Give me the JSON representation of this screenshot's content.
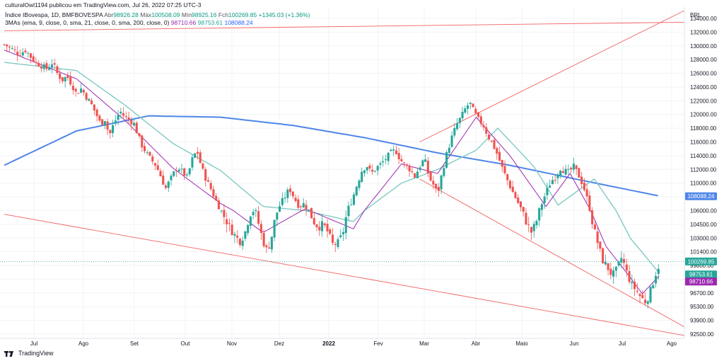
{
  "header": {
    "publisher": "culturalOwl1194 publicou em TradingView.com, Jul 26, 2022 07:25 UTC-3",
    "symbol": "Índice IBovespa, 1D, BMFBOVESPA",
    "open_key": "Abr",
    "open": "98926.28",
    "high_key": "Máx",
    "high": "100508.09",
    "low_key": "Mín",
    "low": "98925.16",
    "close_key": "Fch",
    "close": "100269.85",
    "change": "+1345.03 (+1.36%)",
    "indicator": "3MAs (ema, 9, close, 0, sma, 21, close, 0, sma, 200, close, 0)",
    "ma_values": [
      "98710.66",
      "98753.61",
      "108088.24"
    ]
  },
  "currency": "BRL",
  "footer": {
    "logo_text": "TradingView"
  },
  "colors": {
    "up": "#26a69a",
    "down": "#ef5350",
    "ema9": "#9c27b0",
    "sma21": "#80cbc4",
    "sma200": "#4f86e8",
    "trendline": "#f06262"
  },
  "chart_data": {
    "type": "candlestick",
    "currency": "BRL",
    "y_ticks": [
      "134000.00",
      "132000.00",
      "130000.00",
      "128000.00",
      "126000.00",
      "124000.00",
      "122000.00",
      "120000.00",
      "118000.00",
      "116000.00",
      "114000.00",
      "112000.00",
      "110000.00",
      "108000.00",
      "106000.00",
      "104500.00",
      "103000.00",
      "101400.00",
      "99800.00",
      "98200.00",
      "96700.00",
      "95300.00",
      "93900.00",
      "92500.00"
    ],
    "x_ticks": [
      "Jul",
      "Ago",
      "Set",
      "Out",
      "Nov",
      "Dez",
      "2022",
      "Fev",
      "Mar",
      "Abr",
      "Maio",
      "Jun",
      "Jul",
      "Ago"
    ],
    "price_badges": [
      {
        "value": "108088.24",
        "color": "#4f86e8"
      },
      {
        "value": "100269.85",
        "color": "#26a69a"
      },
      {
        "value": "98753.61",
        "color": "#26a69a"
      },
      {
        "value": "98710.66",
        "color": "#9c27b0"
      }
    ],
    "close_path": [
      [
        0,
        130200
      ],
      [
        6,
        129600
      ],
      [
        12,
        128800
      ],
      [
        18,
        129400
      ],
      [
        22,
        128400
      ],
      [
        26,
        127600
      ],
      [
        32,
        127000
      ],
      [
        36,
        126600
      ],
      [
        40,
        127600
      ],
      [
        44,
        126000
      ],
      [
        48,
        125000
      ],
      [
        52,
        125600
      ],
      [
        56,
        124400
      ],
      [
        60,
        123000
      ],
      [
        64,
        123800
      ],
      [
        68,
        122600
      ],
      [
        72,
        121600
      ],
      [
        76,
        120200
      ],
      [
        80,
        118600
      ],
      [
        84,
        119400
      ],
      [
        87,
        116800
      ],
      [
        90,
        118200
      ],
      [
        94,
        119800
      ],
      [
        97,
        120400
      ],
      [
        100,
        119600
      ],
      [
        104,
        119200
      ],
      [
        108,
        118600
      ],
      [
        111,
        117000
      ],
      [
        114,
        115600
      ],
      [
        118,
        114400
      ],
      [
        122,
        113400
      ],
      [
        126,
        112600
      ],
      [
        130,
        111000
      ],
      [
        134,
        109200
      ],
      [
        137,
        110200
      ],
      [
        140,
        111200
      ],
      [
        144,
        112400
      ],
      [
        148,
        111600
      ],
      [
        152,
        110800
      ],
      [
        156,
        113400
      ],
      [
        160,
        114800
      ],
      [
        164,
        112200
      ],
      [
        168,
        110400
      ],
      [
        172,
        109000
      ],
      [
        176,
        107400
      ],
      [
        180,
        106000
      ],
      [
        184,
        105000
      ],
      [
        188,
        104000
      ],
      [
        192,
        103200
      ],
      [
        196,
        102600
      ],
      [
        200,
        103600
      ],
      [
        204,
        105600
      ],
      [
        208,
        106200
      ],
      [
        212,
        104200
      ],
      [
        215,
        102600
      ],
      [
        218,
        101600
      ],
      [
        221,
        102400
      ],
      [
        225,
        105200
      ],
      [
        229,
        106800
      ],
      [
        233,
        108000
      ],
      [
        237,
        109200
      ],
      [
        241,
        107800
      ],
      [
        245,
        106600
      ],
      [
        249,
        107000
      ],
      [
        253,
        106000
      ],
      [
        257,
        104800
      ],
      [
        261,
        104200
      ],
      [
        265,
        104500
      ],
      [
        269,
        103600
      ],
      [
        273,
        102200
      ],
      [
        277,
        102400
      ],
      [
        281,
        103400
      ],
      [
        285,
        106000
      ],
      [
        289,
        107600
      ],
      [
        293,
        109800
      ],
      [
        297,
        111800
      ],
      [
        301,
        112600
      ],
      [
        305,
        111400
      ],
      [
        309,
        112200
      ],
      [
        313,
        112800
      ],
      [
        317,
        113600
      ],
      [
        321,
        114400
      ],
      [
        325,
        114800
      ],
      [
        329,
        113400
      ],
      [
        333,
        112600
      ],
      [
        337,
        112000
      ],
      [
        341,
        111000
      ],
      [
        345,
        112400
      ],
      [
        349,
        113600
      ],
      [
        353,
        110800
      ],
      [
        357,
        109600
      ],
      [
        360,
        108400
      ],
      [
        364,
        111800
      ],
      [
        368,
        114600
      ],
      [
        372,
        116800
      ],
      [
        376,
        118600
      ],
      [
        380,
        119800
      ],
      [
        384,
        121200
      ],
      [
        387,
        121600
      ],
      [
        390,
        120400
      ],
      [
        394,
        119200
      ],
      [
        398,
        118400
      ],
      [
        402,
        116800
      ],
      [
        406,
        115600
      ],
      [
        410,
        114000
      ],
      [
        414,
        112000
      ],
      [
        418,
        110400
      ],
      [
        422,
        108800
      ],
      [
        426,
        107400
      ],
      [
        430,
        106000
      ],
      [
        434,
        104600
      ],
      [
        438,
        103600
      ],
      [
        442,
        104800
      ],
      [
        446,
        106800
      ],
      [
        450,
        108600
      ],
      [
        454,
        110200
      ],
      [
        458,
        111000
      ],
      [
        462,
        112200
      ],
      [
        465,
        111800
      ],
      [
        469,
        111600
      ],
      [
        473,
        112400
      ],
      [
        477,
        111200
      ],
      [
        481,
        109600
      ],
      [
        485,
        107200
      ],
      [
        489,
        104400
      ],
      [
        493,
        102400
      ],
      [
        497,
        100400
      ],
      [
        501,
        99600
      ],
      [
        505,
        98600
      ],
      [
        509,
        99400
      ],
      [
        513,
        100800
      ],
      [
        517,
        99000
      ],
      [
        521,
        97600
      ],
      [
        525,
        97000
      ],
      [
        529,
        96200
      ],
      [
        533,
        95800
      ],
      [
        537,
        97000
      ],
      [
        541,
        98800
      ],
      [
        545,
        100269
      ]
    ],
    "sma200": [
      [
        0,
        112600
      ],
      [
        60,
        117600
      ],
      [
        120,
        119800
      ],
      [
        180,
        119600
      ],
      [
        240,
        118400
      ],
      [
        300,
        116600
      ],
      [
        360,
        114400
      ],
      [
        420,
        112600
      ],
      [
        480,
        110400
      ],
      [
        545,
        108088
      ]
    ],
    "sma21": [
      [
        0,
        127600
      ],
      [
        60,
        126400
      ],
      [
        100,
        121400
      ],
      [
        140,
        115800
      ],
      [
        180,
        111800
      ],
      [
        215,
        106600
      ],
      [
        250,
        106000
      ],
      [
        290,
        104800
      ],
      [
        330,
        110000
      ],
      [
        360,
        112000
      ],
      [
        392,
        114800
      ],
      [
        410,
        118000
      ],
      [
        440,
        112400
      ],
      [
        460,
        106800
      ],
      [
        490,
        110600
      ],
      [
        520,
        103000
      ],
      [
        545,
        98753
      ]
    ],
    "ema9": [
      [
        0,
        129400
      ],
      [
        60,
        125200
      ],
      [
        100,
        119200
      ],
      [
        140,
        112200
      ],
      [
        180,
        107000
      ],
      [
        215,
        103600
      ],
      [
        250,
        106200
      ],
      [
        290,
        104000
      ],
      [
        330,
        112800
      ],
      [
        360,
        111400
      ],
      [
        392,
        119600
      ],
      [
        420,
        114000
      ],
      [
        450,
        106600
      ],
      [
        470,
        111400
      ],
      [
        500,
        102000
      ],
      [
        530,
        96600
      ],
      [
        545,
        98710
      ]
    ],
    "trendlines": [
      [
        [
          0,
          132200
        ],
        [
          545,
          133400
        ]
      ],
      [
        [
          0,
          105600
        ],
        [
          545,
          92800
        ]
      ],
      [
        [
          345,
          116000
        ],
        [
          545,
          133400
        ]
      ],
      [
        [
          345,
          110600
        ],
        [
          545,
          94600
        ]
      ]
    ]
  }
}
